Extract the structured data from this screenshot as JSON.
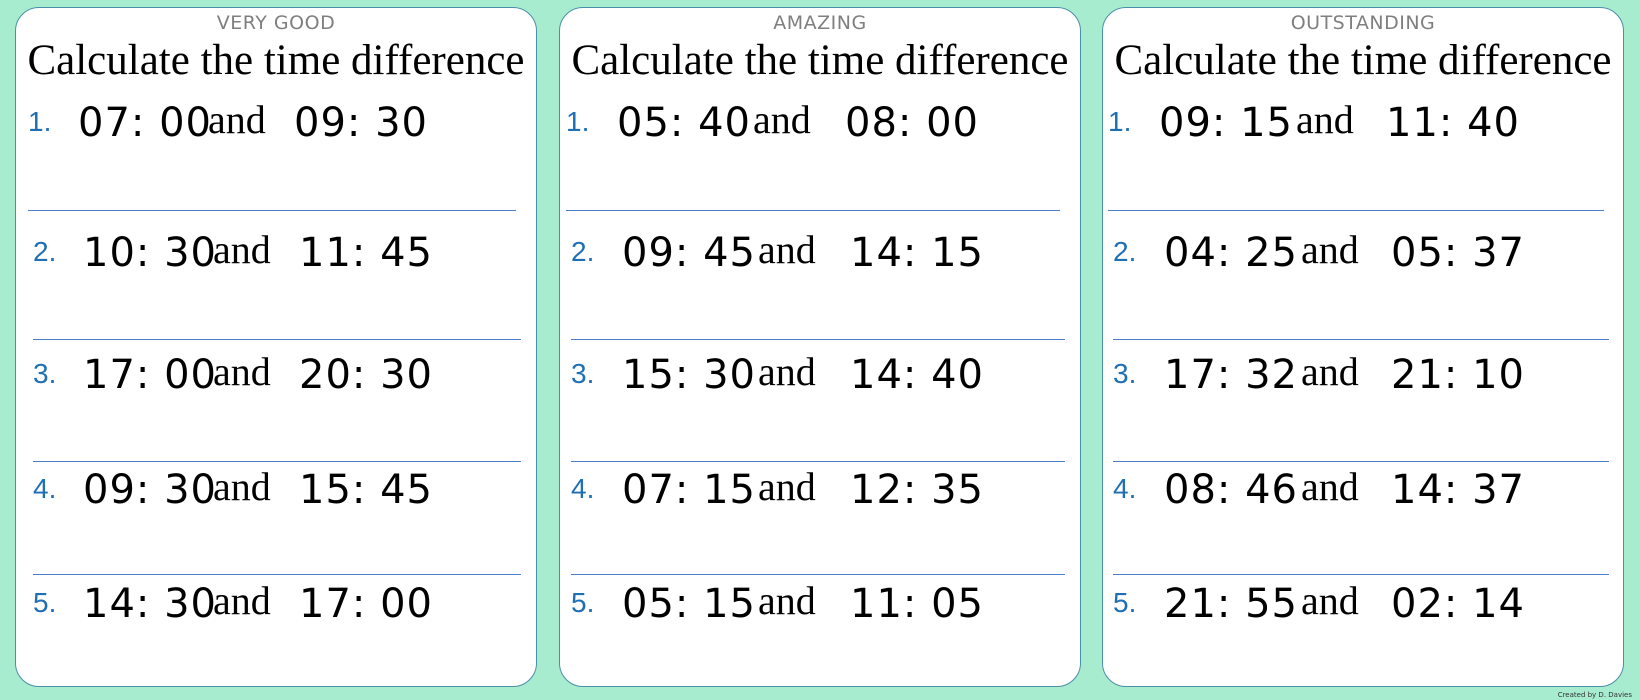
{
  "worksheets": [
    {
      "level": "VERY GOOD",
      "heading": "Calculate the time difference",
      "questions": [
        {
          "num": "1.",
          "start": "07: 00",
          "joiner": "and",
          "end": "09: 30"
        },
        {
          "num": "2.",
          "start": "10: 30",
          "joiner": "and",
          "end": "11: 45"
        },
        {
          "num": "3.",
          "start": "17: 00",
          "joiner": "and",
          "end": "20: 30"
        },
        {
          "num": "4.",
          "start": "09: 30",
          "joiner": "and",
          "end": "15: 45"
        },
        {
          "num": "5.",
          "start": "14: 30",
          "joiner": "and",
          "end": "17: 00"
        }
      ]
    },
    {
      "level": "AMAZING",
      "heading": "Calculate the time difference",
      "questions": [
        {
          "num": "1.",
          "start": "05: 40",
          "joiner": "and",
          "end": "08: 00"
        },
        {
          "num": "2.",
          "start": "09: 45",
          "joiner": "and",
          "end": "14: 15"
        },
        {
          "num": "3.",
          "start": "15: 30",
          "joiner": "and",
          "end": "14: 40"
        },
        {
          "num": "4.",
          "start": "07: 15",
          "joiner": "and",
          "end": "12: 35"
        },
        {
          "num": "5.",
          "start": "05: 15",
          "joiner": "and",
          "end": "11: 05"
        }
      ]
    },
    {
      "level": "OUTSTANDING",
      "heading": "Calculate the time difference",
      "questions": [
        {
          "num": "1.",
          "start": "09: 15",
          "joiner": "and",
          "end": "11: 40"
        },
        {
          "num": "2.",
          "start": "04: 25",
          "joiner": "and",
          "end": "05: 37"
        },
        {
          "num": "3.",
          "start": "17: 32",
          "joiner": "and",
          "end": "21: 10"
        },
        {
          "num": "4.",
          "start": "08: 46",
          "joiner": "and",
          "end": "14: 37"
        },
        {
          "num": "5.",
          "start": "21: 55",
          "joiner": "and",
          "end": "02: 14"
        }
      ]
    }
  ],
  "credit": "Created by D. Davies",
  "colors": {
    "background": "#a8ecd0",
    "card_border": "#4a8fa8",
    "number_blue": "#1f6fb5",
    "rule_blue": "#4a7fc8",
    "level_gray": "#7f7f7f"
  }
}
